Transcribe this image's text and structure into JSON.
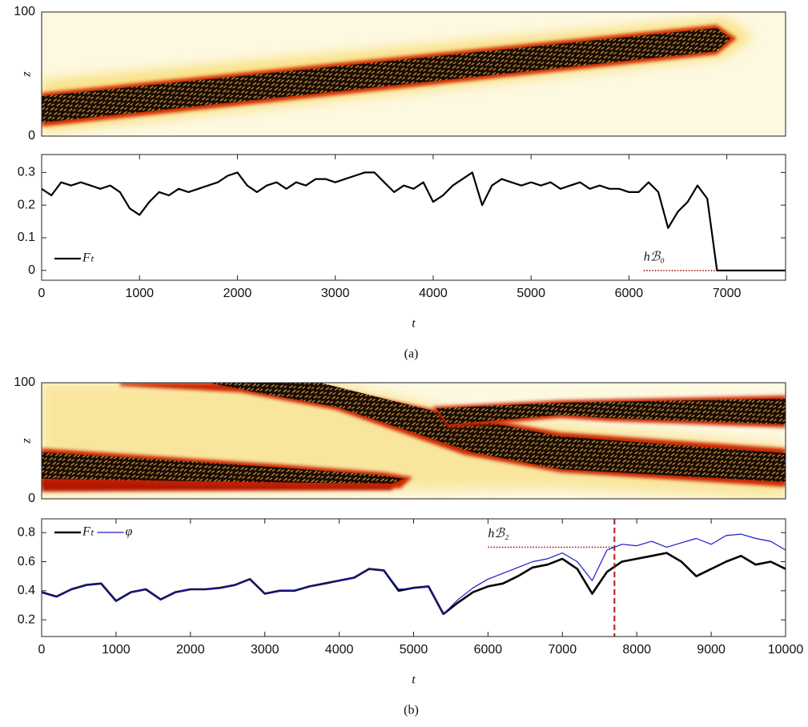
{
  "chart_data": [
    {
      "type": "heatmap",
      "ylabel": "z",
      "ylim": [
        0,
        100
      ],
      "yticks": [
        0,
        100
      ]
    },
    {
      "type": "line",
      "xlabel": "t",
      "caption": "(a)",
      "legend": "lower left",
      "xlim": [
        0,
        7600
      ],
      "xticks": [
        0,
        1000,
        2000,
        3000,
        4000,
        5000,
        6000,
        7000
      ],
      "ylim": [
        -0.03,
        0.355
      ],
      "yticks": [
        0,
        0.1,
        0.2,
        0.3
      ],
      "x": [
        0,
        100,
        200,
        300,
        400,
        500,
        600,
        700,
        800,
        900,
        1000,
        1100,
        1200,
        1300,
        1400,
        1500,
        1600,
        1700,
        1800,
        1900,
        2000,
        2100,
        2200,
        2300,
        2400,
        2500,
        2600,
        2700,
        2800,
        2900,
        3000,
        3100,
        3200,
        3300,
        3400,
        3500,
        3600,
        3700,
        3800,
        3900,
        4000,
        4100,
        4200,
        4300,
        4400,
        4500,
        4600,
        4700,
        4800,
        4900,
        5000,
        5100,
        5200,
        5300,
        5400,
        5500,
        5600,
        5700,
        5800,
        5900,
        6000,
        6100,
        6200,
        6300,
        6400,
        6500,
        6600,
        6700,
        6800,
        6900,
        7000,
        7100,
        7200,
        7300,
        7400,
        7500,
        7600
      ],
      "series": [
        {
          "name": "Fₜ",
          "color": "#000000",
          "width": 2.2,
          "values": [
            0.25,
            0.23,
            0.27,
            0.26,
            0.27,
            0.26,
            0.25,
            0.26,
            0.24,
            0.19,
            0.17,
            0.21,
            0.24,
            0.23,
            0.25,
            0.24,
            0.25,
            0.26,
            0.27,
            0.29,
            0.3,
            0.26,
            0.24,
            0.26,
            0.27,
            0.25,
            0.27,
            0.26,
            0.28,
            0.28,
            0.27,
            0.28,
            0.29,
            0.3,
            0.3,
            0.27,
            0.24,
            0.26,
            0.25,
            0.27,
            0.21,
            0.23,
            0.26,
            0.28,
            0.3,
            0.2,
            0.26,
            0.28,
            0.27,
            0.26,
            0.27,
            0.26,
            0.27,
            0.25,
            0.26,
            0.27,
            0.25,
            0.26,
            0.25,
            0.25,
            0.24,
            0.24,
            0.27,
            0.24,
            0.13,
            0.18,
            0.21,
            0.26,
            0.22,
            0,
            0,
            0,
            0,
            0,
            0,
            0,
            0
          ]
        }
      ],
      "annotations": [
        {
          "label": "hℬ₀",
          "x": [
            6150,
            6900
          ],
          "y": 0,
          "color": "#a01010"
        }
      ]
    },
    {
      "type": "heatmap",
      "ylabel": "z",
      "ylim": [
        0,
        100
      ],
      "yticks": [
        0,
        100
      ]
    },
    {
      "type": "line",
      "xlabel": "t",
      "caption": "(b)",
      "legend": "upper left",
      "xlim": [
        0,
        10000
      ],
      "xticks": [
        0,
        1000,
        2000,
        3000,
        4000,
        5000,
        6000,
        7000,
        8000,
        9000,
        10000
      ],
      "ylim": [
        0.085,
        0.895
      ],
      "yticks": [
        0.2,
        0.4,
        0.6,
        0.8
      ],
      "x": [
        0,
        200,
        400,
        600,
        800,
        1000,
        1200,
        1400,
        1600,
        1800,
        2000,
        2200,
        2400,
        2600,
        2800,
        3000,
        3200,
        3400,
        3600,
        3800,
        4000,
        4200,
        4400,
        4600,
        4800,
        5000,
        5200,
        5400,
        5600,
        5800,
        6000,
        6200,
        6400,
        6600,
        6800,
        7000,
        7200,
        7400,
        7600,
        7800,
        8000,
        8200,
        8400,
        8600,
        8800,
        9000,
        9200,
        9400,
        9600,
        9800,
        10000
      ],
      "series": [
        {
          "name": "Fₜ",
          "color": "#000000",
          "width": 2.6,
          "values": [
            0.39,
            0.36,
            0.41,
            0.44,
            0.45,
            0.33,
            0.39,
            0.41,
            0.34,
            0.39,
            0.41,
            0.41,
            0.42,
            0.44,
            0.48,
            0.38,
            0.4,
            0.4,
            0.43,
            0.45,
            0.47,
            0.49,
            0.55,
            0.54,
            0.4,
            0.42,
            0.43,
            0.24,
            0.32,
            0.39,
            0.43,
            0.45,
            0.5,
            0.56,
            0.58,
            0.62,
            0.55,
            0.38,
            0.53,
            0.6,
            0.62,
            0.64,
            0.66,
            0.6,
            0.5,
            0.55,
            0.6,
            0.64,
            0.58,
            0.6,
            0.55
          ]
        },
        {
          "name": "φ",
          "color": "#1a1acc",
          "width": 1.2,
          "values": [
            0.39,
            0.36,
            0.41,
            0.44,
            0.45,
            0.33,
            0.39,
            0.41,
            0.34,
            0.39,
            0.41,
            0.41,
            0.42,
            0.44,
            0.48,
            0.38,
            0.4,
            0.4,
            0.43,
            0.45,
            0.47,
            0.49,
            0.55,
            0.54,
            0.41,
            0.42,
            0.43,
            0.24,
            0.34,
            0.42,
            0.48,
            0.52,
            0.56,
            0.6,
            0.62,
            0.66,
            0.6,
            0.47,
            0.68,
            0.72,
            0.71,
            0.74,
            0.7,
            0.73,
            0.76,
            0.72,
            0.78,
            0.79,
            0.76,
            0.74,
            0.68
          ]
        }
      ],
      "annotations": [
        {
          "label": "hℬ₂",
          "x": [
            6000,
            7700
          ],
          "y": 0.7,
          "color": "#a01010"
        }
      ],
      "vlines": [
        {
          "x": 7700,
          "color": "#b01818"
        }
      ]
    }
  ]
}
